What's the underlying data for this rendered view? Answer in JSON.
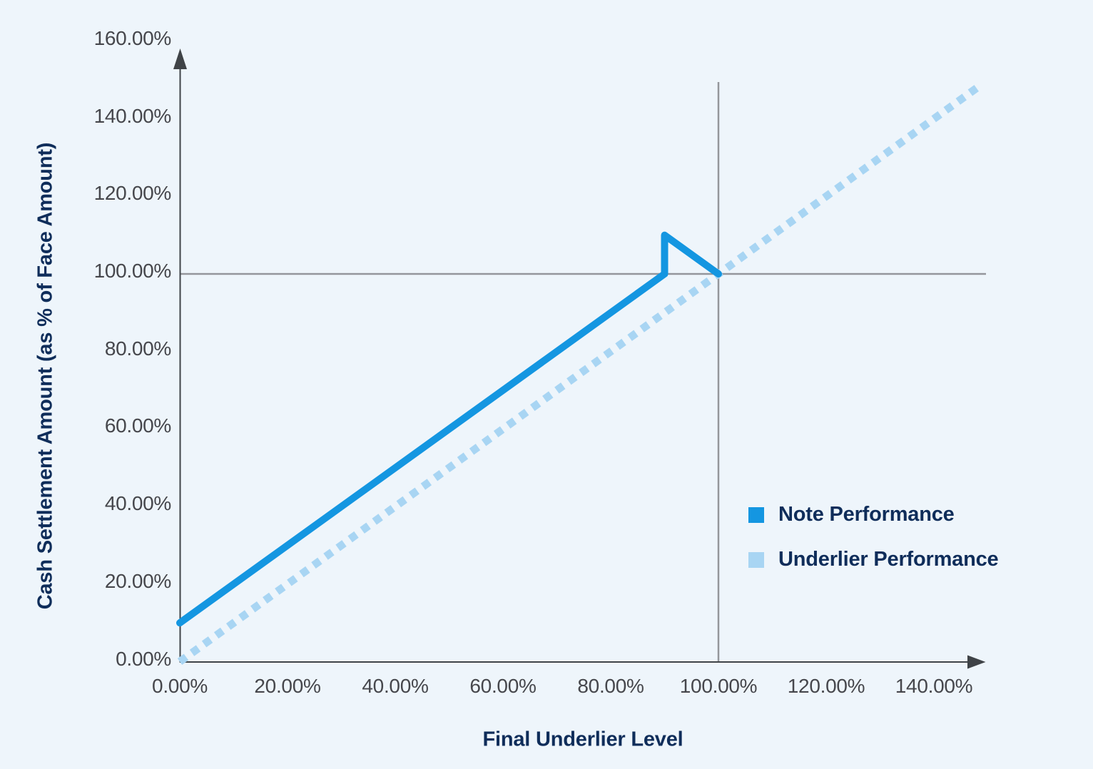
{
  "chart_data": {
    "type": "line",
    "title": "",
    "xlabel": "Final Underlier Level",
    "ylabel": "Cash Settlement Amount (as % of Face Amount)",
    "x_tick_labels": [
      "0.00%",
      "20.00%",
      "40.00%",
      "60.00%",
      "80.00%",
      "100.00%",
      "120.00%",
      "140.00%"
    ],
    "x_tick_values": [
      0,
      20,
      40,
      60,
      80,
      100,
      120,
      140
    ],
    "y_tick_labels": [
      "0.00%",
      "20.00%",
      "40.00%",
      "60.00%",
      "80.00%",
      "100.00%",
      "120.00%",
      "140.00%",
      "160.00%"
    ],
    "y_tick_values": [
      0,
      20,
      40,
      60,
      80,
      100,
      120,
      140,
      160
    ],
    "xlim": [
      0,
      149.5
    ],
    "ylim": [
      0,
      160
    ],
    "grid": false,
    "axis_arrows": true,
    "series": [
      {
        "name": "Note Performance",
        "style": "solid",
        "color": "#1496E1",
        "stroke_width": 10,
        "points": [
          [
            0,
            10
          ],
          [
            90,
            100
          ],
          [
            90,
            110
          ],
          [
            100,
            100
          ]
        ],
        "description": "Rises 1:1 from (0%,10%) to (90%,100%), vertical jump up to (90%,110%), then declines to end at (100%,100%)"
      },
      {
        "name": "Underlier Performance",
        "style": "dotted",
        "color": "#A8D5F3",
        "stroke_width": 11,
        "points": [
          [
            0,
            0
          ],
          [
            148.5,
            148.5
          ]
        ],
        "description": "Identity line y = x from origin to about (148.5%,148.5%)"
      }
    ],
    "reference_lines": {
      "horizontal_at_y": 100,
      "vertical_at_x": 100
    },
    "legend": {
      "position": "middle-right",
      "entries": [
        {
          "label": "Note Performance",
          "color": "#1496E1",
          "marker": "square"
        },
        {
          "label": "Underlier Performance",
          "color": "#A8D5F3",
          "marker": "square"
        }
      ]
    },
    "colors": {
      "background": "#EEF5FB",
      "axis": "#3F4347",
      "reference_line": "#94969B",
      "tick_text": "#46474C",
      "title_text": "#0F2D5A",
      "legend_text": "#0F2D5A"
    }
  }
}
